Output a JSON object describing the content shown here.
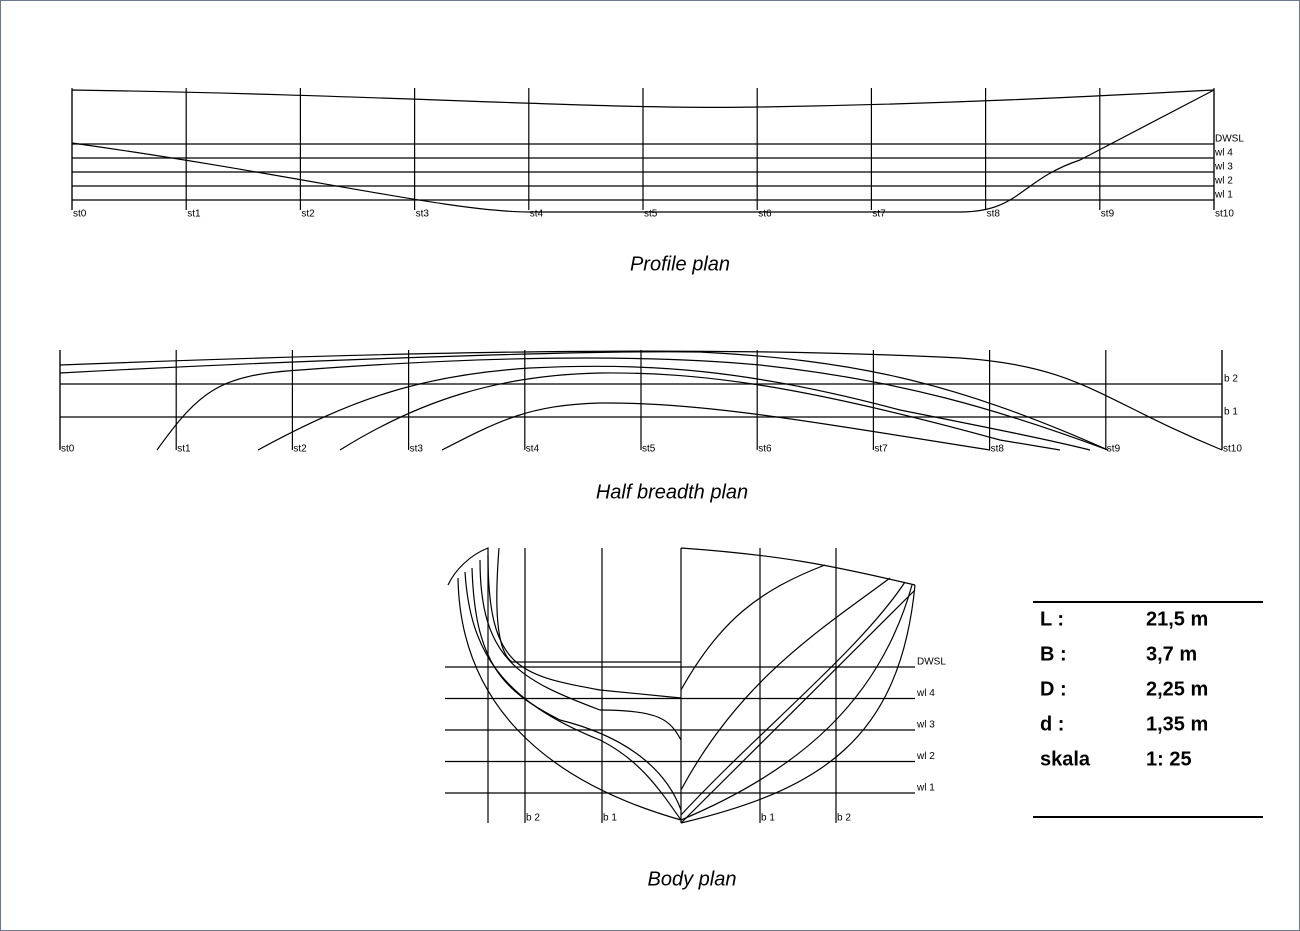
{
  "profile_plan": {
    "caption": "Profile plan",
    "stations": [
      "st0",
      "st1",
      "st2",
      "st3",
      "st4",
      "st5",
      "st6",
      "st7",
      "st8",
      "st9",
      "st10"
    ],
    "waterlines": [
      "DWSL",
      "wl 4",
      "wl 3",
      "wl 2",
      "wl 1"
    ]
  },
  "half_breadth_plan": {
    "caption": "Half breadth plan",
    "stations": [
      "st0",
      "st1",
      "st2",
      "st3",
      "st4",
      "st5",
      "st6",
      "st7",
      "st8",
      "st9",
      "st10"
    ],
    "buttocks": [
      "b 2",
      "b 1"
    ]
  },
  "body_plan": {
    "caption": "Body plan",
    "waterlines": [
      "DWSL",
      "wl 4",
      "wl 3",
      "wl 2",
      "wl 1"
    ],
    "buttocks": [
      "b 2",
      "b 1",
      "b 1",
      "b 2"
    ]
  },
  "specs": {
    "rows": [
      [
        "L :",
        "21,5 m"
      ],
      [
        "B :",
        "3,7 m"
      ],
      [
        "D :",
        "2,25 m"
      ],
      [
        "d  :",
        "1,35 m"
      ],
      [
        "skala",
        "1: 25"
      ]
    ]
  }
}
